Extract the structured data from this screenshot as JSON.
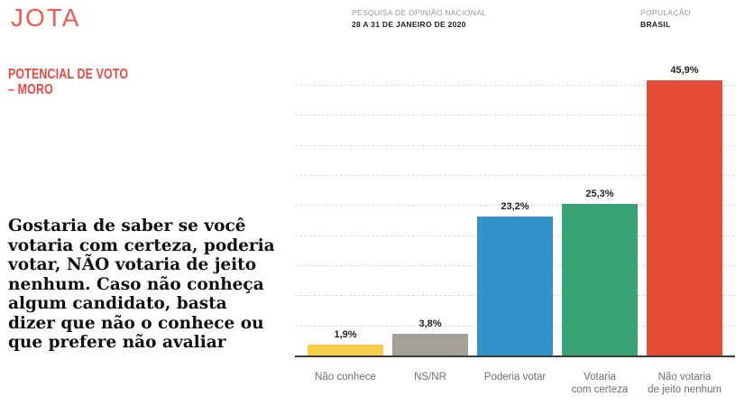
{
  "header": {
    "logo": "JOTA",
    "survey_label": "PESQUISA DE OPINIÃO NACIONAL",
    "survey_value": "28 A 31 DE JANEIRO DE 2020",
    "population_label": "POPULAÇÃO",
    "population_value": "BRASIL"
  },
  "section": {
    "title": "POTENCIAL DE VOTO\n– MORO",
    "question": "Gostaria de saber se você\nvotaria com certeza, poderia\nvotar, NÃO votaria de jeito\nnenhum. Caso não conheça\nalgum candidato, basta\ndizer que não o conhece ou\nque prefere não avaliar"
  },
  "chart_data": {
    "type": "bar",
    "title": "Potencial de voto – Moro",
    "categories": [
      "Não conhece",
      "NS/NR",
      "Poderia votar",
      "Votaria\ncom certeza",
      "Não votaria\nde jeito nenhum"
    ],
    "values": [
      1.9,
      3.8,
      23.2,
      25.3,
      45.9
    ],
    "value_labels": [
      "1,9%",
      "3,8%",
      "23,2%",
      "25,3%",
      "45,9%"
    ],
    "bar_colors": [
      "#F8CD4B",
      "#A3A097",
      "#3292C9",
      "#39A376",
      "#E54C38"
    ],
    "xlabel": "",
    "ylabel": "",
    "ylim": [
      0,
      46.5
    ],
    "gridlines_pct": [
      5,
      10,
      15,
      20,
      25,
      30,
      35,
      40,
      45
    ],
    "grid": true,
    "legend": false
  },
  "colors": {
    "logo_red": "#F05A50",
    "title_red": "#EF463F",
    "meta_label_gray": "#939598",
    "meta_value_dark": "#231F20",
    "category_gray": "#6D6E71",
    "gridline_gray": "#DCDCDC",
    "axis_dark": "#3C3C3C"
  }
}
